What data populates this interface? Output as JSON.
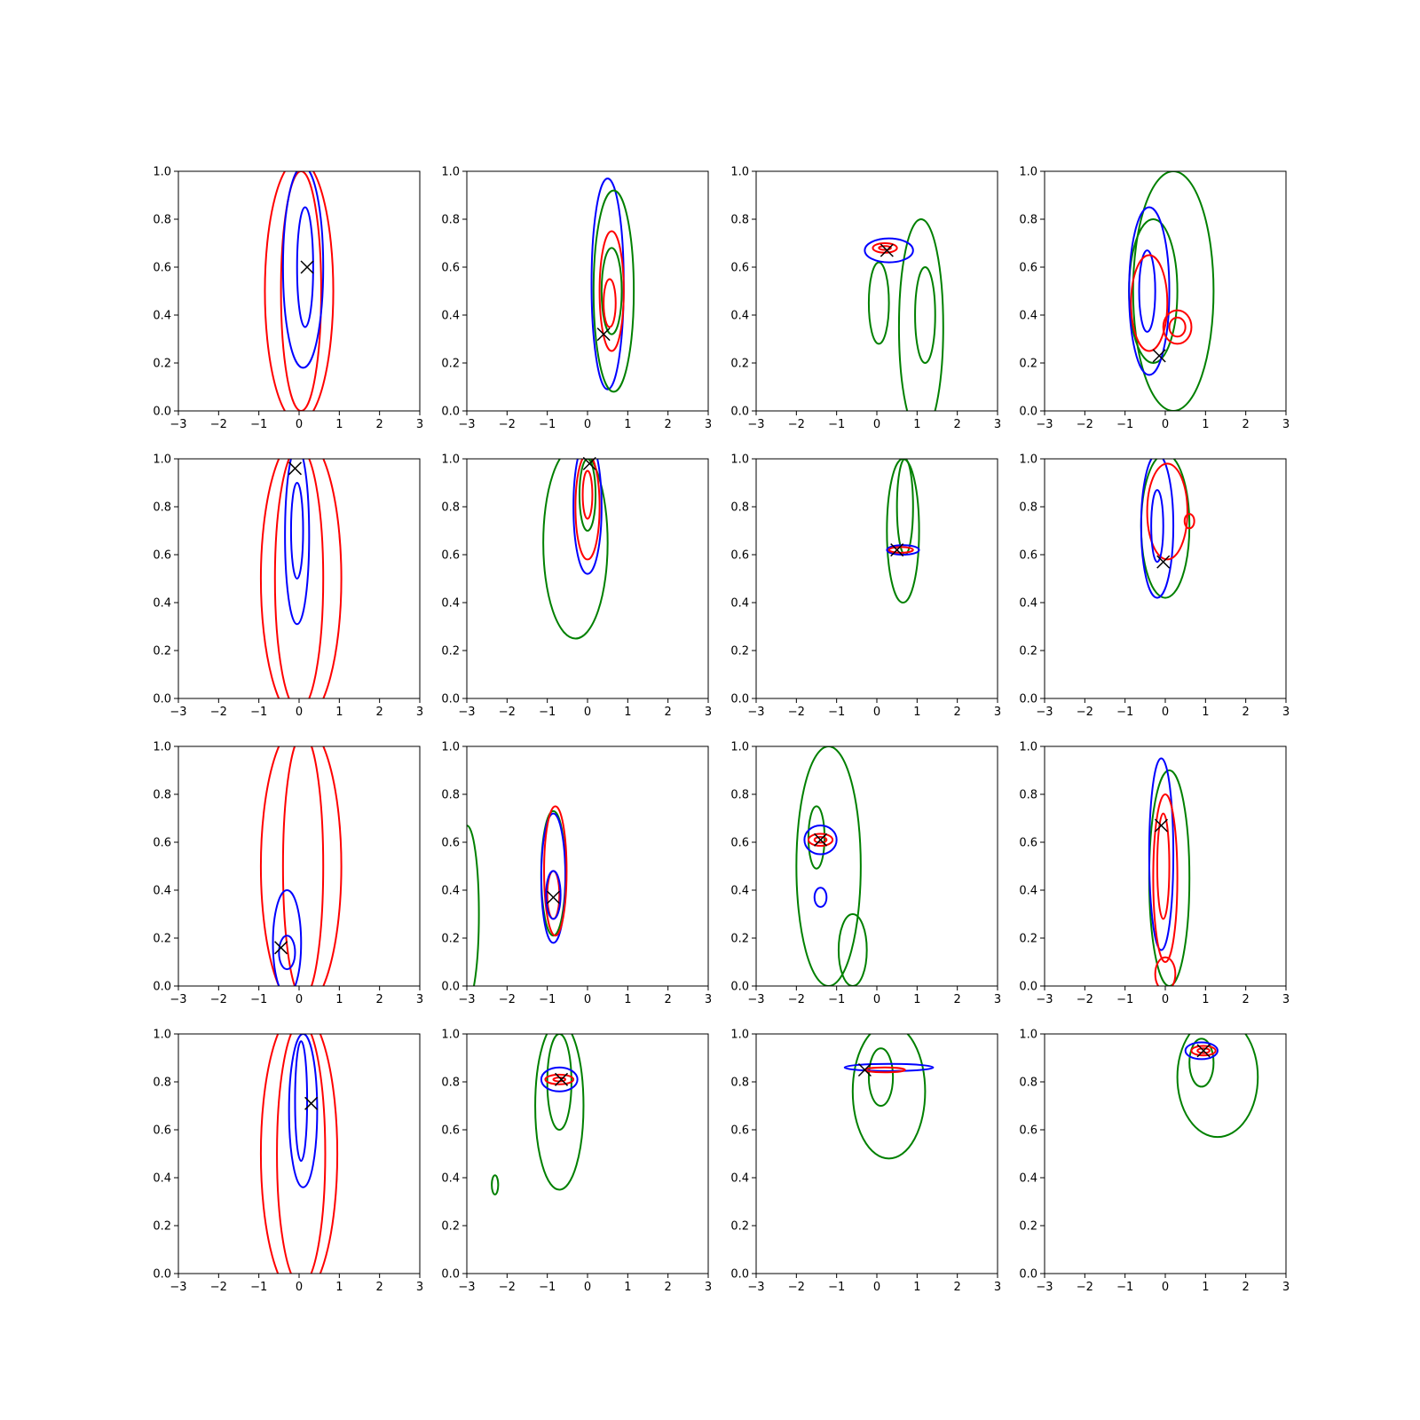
{
  "figure": {
    "grid_rows": 4,
    "grid_cols": 4,
    "x_ticks": [
      "−3",
      "−2",
      "−1",
      "0",
      "1",
      "2",
      "3"
    ],
    "y_ticks": [
      "0.0",
      "0.2",
      "0.4",
      "0.6",
      "0.8",
      "1.0"
    ]
  },
  "colors": {
    "background": "#ffffff",
    "blue": "#0000ff",
    "red": "#ff0000",
    "green": "#008000",
    "marker": "#000000"
  },
  "chart_data": [
    {
      "type": "contour",
      "panel": "r1c1",
      "xlim": [
        -3,
        3
      ],
      "ylim": [
        0,
        1
      ],
      "marker": [
        0.2,
        0.6
      ],
      "contours": [
        {
          "series": "red",
          "level": "outer",
          "cx": 0.0,
          "cy": 0.5,
          "rx": 0.85,
          "ry": 0.55
        },
        {
          "series": "red",
          "level": "inner",
          "cx": 0.05,
          "cy": 0.5,
          "rx": 0.5,
          "ry": 0.5
        },
        {
          "series": "blue",
          "level": "outer",
          "cx": 0.1,
          "cy": 0.6,
          "rx": 0.5,
          "ry": 0.42
        },
        {
          "series": "blue",
          "level": "inner",
          "cx": 0.15,
          "cy": 0.6,
          "rx": 0.2,
          "ry": 0.25
        }
      ]
    },
    {
      "type": "contour",
      "panel": "r1c2",
      "xlim": [
        -3,
        3
      ],
      "ylim": [
        0,
        1
      ],
      "marker": [
        0.4,
        0.32
      ],
      "contours": [
        {
          "series": "blue",
          "level": "outer",
          "cx": 0.5,
          "cy": 0.53,
          "rx": 0.4,
          "ry": 0.44
        },
        {
          "series": "green",
          "level": "outer",
          "cx": 0.65,
          "cy": 0.5,
          "rx": 0.5,
          "ry": 0.42
        },
        {
          "series": "red",
          "level": "outer",
          "cx": 0.6,
          "cy": 0.5,
          "rx": 0.3,
          "ry": 0.25
        },
        {
          "series": "green",
          "level": "inner",
          "cx": 0.6,
          "cy": 0.5,
          "rx": 0.25,
          "ry": 0.18
        },
        {
          "series": "red",
          "level": "inner",
          "cx": 0.55,
          "cy": 0.45,
          "rx": 0.15,
          "ry": 0.1
        }
      ]
    },
    {
      "type": "contour",
      "panel": "r1c3",
      "xlim": [
        -3,
        3
      ],
      "ylim": [
        0,
        1
      ],
      "marker": [
        0.25,
        0.67
      ],
      "contours": [
        {
          "series": "green",
          "level": "outer",
          "cx": 1.1,
          "cy": 0.35,
          "rx": 0.55,
          "ry": 0.45
        },
        {
          "series": "green",
          "level": "inner",
          "cx": 1.2,
          "cy": 0.4,
          "rx": 0.25,
          "ry": 0.2
        },
        {
          "series": "green",
          "level": "outer",
          "cx": 0.05,
          "cy": 0.45,
          "rx": 0.25,
          "ry": 0.17
        },
        {
          "series": "blue",
          "level": "outer",
          "cx": 0.3,
          "cy": 0.67,
          "rx": 0.6,
          "ry": 0.05
        },
        {
          "series": "red",
          "level": "outer",
          "cx": 0.2,
          "cy": 0.68,
          "rx": 0.3,
          "ry": 0.02
        },
        {
          "series": "red",
          "level": "inner",
          "cx": 0.2,
          "cy": 0.68,
          "rx": 0.15,
          "ry": 0.008
        }
      ]
    },
    {
      "type": "contour",
      "panel": "r1c4",
      "xlim": [
        -3,
        3
      ],
      "ylim": [
        0,
        1
      ],
      "marker": [
        -0.15,
        0.23
      ],
      "contours": [
        {
          "series": "green",
          "level": "outer",
          "cx": 0.2,
          "cy": 0.5,
          "rx": 1.0,
          "ry": 0.5
        },
        {
          "series": "green",
          "level": "inner",
          "cx": -0.3,
          "cy": 0.5,
          "rx": 0.6,
          "ry": 0.3
        },
        {
          "series": "blue",
          "level": "outer",
          "cx": -0.4,
          "cy": 0.5,
          "rx": 0.5,
          "ry": 0.35
        },
        {
          "series": "blue",
          "level": "inner",
          "cx": -0.45,
          "cy": 0.5,
          "rx": 0.2,
          "ry": 0.17
        },
        {
          "series": "red",
          "level": "outer",
          "cx": -0.4,
          "cy": 0.45,
          "rx": 0.45,
          "ry": 0.2
        },
        {
          "series": "red",
          "level": "inner",
          "cx": 0.3,
          "cy": 0.35,
          "rx": 0.35,
          "ry": 0.07
        },
        {
          "series": "red",
          "level": "inner",
          "cx": 0.3,
          "cy": 0.35,
          "rx": 0.2,
          "ry": 0.04
        }
      ]
    },
    {
      "type": "contour",
      "panel": "r2c1",
      "xlim": [
        -3,
        3
      ],
      "ylim": [
        0,
        1
      ],
      "marker": [
        -0.1,
        0.96
      ],
      "contours": [
        {
          "series": "red",
          "level": "outer",
          "cx": 0.05,
          "cy": 0.5,
          "rx": 1.0,
          "ry": 0.6
        },
        {
          "series": "red",
          "level": "inner",
          "cx": 0.0,
          "cy": 0.5,
          "rx": 0.6,
          "ry": 0.55
        },
        {
          "series": "blue",
          "level": "outer",
          "cx": -0.05,
          "cy": 0.68,
          "rx": 0.3,
          "ry": 0.37
        },
        {
          "series": "blue",
          "level": "inner",
          "cx": -0.05,
          "cy": 0.7,
          "rx": 0.15,
          "ry": 0.2
        }
      ]
    },
    {
      "type": "contour",
      "panel": "r2c2",
      "xlim": [
        -3,
        3
      ],
      "ylim": [
        0,
        1
      ],
      "marker": [
        0.05,
        0.98
      ],
      "contours": [
        {
          "series": "green",
          "level": "outer",
          "cx": -0.3,
          "cy": 0.65,
          "rx": 0.8,
          "ry": 0.4
        },
        {
          "series": "blue",
          "level": "outer",
          "cx": 0.0,
          "cy": 0.8,
          "rx": 0.35,
          "ry": 0.28
        },
        {
          "series": "red",
          "level": "outer",
          "cx": 0.0,
          "cy": 0.8,
          "rx": 0.3,
          "ry": 0.22
        },
        {
          "series": "green",
          "level": "inner",
          "cx": 0.0,
          "cy": 0.85,
          "rx": 0.2,
          "ry": 0.15
        },
        {
          "series": "red",
          "level": "inner",
          "cx": 0.0,
          "cy": 0.85,
          "rx": 0.12,
          "ry": 0.1
        }
      ]
    },
    {
      "type": "contour",
      "panel": "r2c3",
      "xlim": [
        -3,
        3
      ],
      "ylim": [
        0,
        1
      ],
      "marker": [
        0.5,
        0.62
      ],
      "contours": [
        {
          "series": "green",
          "level": "outer",
          "cx": 0.65,
          "cy": 0.7,
          "rx": 0.4,
          "ry": 0.3
        },
        {
          "series": "green",
          "level": "inner",
          "cx": 0.7,
          "cy": 0.8,
          "rx": 0.2,
          "ry": 0.2
        },
        {
          "series": "blue",
          "level": "outer",
          "cx": 0.65,
          "cy": 0.62,
          "rx": 0.4,
          "ry": 0.02
        },
        {
          "series": "red",
          "level": "outer",
          "cx": 0.6,
          "cy": 0.62,
          "rx": 0.3,
          "ry": 0.012
        }
      ]
    },
    {
      "type": "contour",
      "panel": "r2c4",
      "xlim": [
        -3,
        3
      ],
      "ylim": [
        0,
        1
      ],
      "marker": [
        -0.05,
        0.57
      ],
      "contours": [
        {
          "series": "green",
          "level": "outer",
          "cx": 0.0,
          "cy": 0.72,
          "rx": 0.6,
          "ry": 0.3
        },
        {
          "series": "blue",
          "level": "outer",
          "cx": -0.2,
          "cy": 0.72,
          "rx": 0.4,
          "ry": 0.3
        },
        {
          "series": "red",
          "level": "outer",
          "cx": 0.05,
          "cy": 0.78,
          "rx": 0.5,
          "ry": 0.2
        },
        {
          "series": "red",
          "level": "inner",
          "cx": 0.6,
          "cy": 0.74,
          "rx": 0.12,
          "ry": 0.03
        },
        {
          "series": "blue",
          "level": "inner",
          "cx": -0.2,
          "cy": 0.72,
          "rx": 0.15,
          "ry": 0.15
        }
      ]
    },
    {
      "type": "contour",
      "panel": "r3c1",
      "xlim": [
        -3,
        3
      ],
      "ylim": [
        0,
        1
      ],
      "marker": [
        -0.45,
        0.16
      ],
      "contours": [
        {
          "series": "red",
          "level": "outer",
          "cx": 0.05,
          "cy": 0.5,
          "rx": 1.0,
          "ry": 0.6
        },
        {
          "series": "red",
          "level": "inner",
          "cx": 0.1,
          "cy": 0.5,
          "rx": 0.5,
          "ry": 0.55
        },
        {
          "series": "blue",
          "level": "outer",
          "cx": -0.3,
          "cy": 0.18,
          "rx": 0.35,
          "ry": 0.22
        },
        {
          "series": "blue",
          "level": "inner",
          "cx": -0.3,
          "cy": 0.14,
          "rx": 0.2,
          "ry": 0.07
        }
      ]
    },
    {
      "type": "contour",
      "panel": "r3c2",
      "xlim": [
        -3,
        3
      ],
      "ylim": [
        0,
        1
      ],
      "marker": [
        -0.85,
        0.37
      ],
      "contours": [
        {
          "series": "green",
          "level": "outer",
          "cx": -3.0,
          "cy": 0.3,
          "rx": 0.3,
          "ry": 0.37
        },
        {
          "series": "green",
          "level": "outer",
          "cx": -0.85,
          "cy": 0.47,
          "rx": 0.3,
          "ry": 0.26
        },
        {
          "series": "blue",
          "level": "outer",
          "cx": -0.85,
          "cy": 0.45,
          "rx": 0.3,
          "ry": 0.27
        },
        {
          "series": "red",
          "level": "outer",
          "cx": -0.8,
          "cy": 0.48,
          "rx": 0.28,
          "ry": 0.27
        },
        {
          "series": "red",
          "level": "inner",
          "cx": -0.85,
          "cy": 0.38,
          "rx": 0.15,
          "ry": 0.1
        },
        {
          "series": "blue",
          "level": "inner",
          "cx": -0.85,
          "cy": 0.38,
          "rx": 0.18,
          "ry": 0.1
        }
      ]
    },
    {
      "type": "contour",
      "panel": "r3c3",
      "xlim": [
        -3,
        3
      ],
      "ylim": [
        0,
        1
      ],
      "marker": [
        -1.4,
        0.61
      ],
      "contours": [
        {
          "series": "green",
          "level": "outer",
          "cx": -1.2,
          "cy": 0.5,
          "rx": 0.8,
          "ry": 0.5
        },
        {
          "series": "green",
          "level": "inner",
          "cx": -1.5,
          "cy": 0.62,
          "rx": 0.2,
          "ry": 0.13
        },
        {
          "series": "green",
          "level": "inner",
          "cx": -0.6,
          "cy": 0.15,
          "rx": 0.35,
          "ry": 0.15
        },
        {
          "series": "blue",
          "level": "outer",
          "cx": -1.4,
          "cy": 0.61,
          "rx": 0.4,
          "ry": 0.06
        },
        {
          "series": "red",
          "level": "outer",
          "cx": -1.4,
          "cy": 0.61,
          "rx": 0.3,
          "ry": 0.025
        },
        {
          "series": "red",
          "level": "inner",
          "cx": -1.4,
          "cy": 0.61,
          "rx": 0.15,
          "ry": 0.012
        },
        {
          "series": "blue",
          "level": "inner",
          "cx": -1.4,
          "cy": 0.37,
          "rx": 0.15,
          "ry": 0.04
        }
      ]
    },
    {
      "type": "contour",
      "panel": "r3c4",
      "xlim": [
        -3,
        3
      ],
      "ylim": [
        0,
        1
      ],
      "marker": [
        -0.1,
        0.67
      ],
      "contours": [
        {
          "series": "green",
          "level": "outer",
          "cx": 0.1,
          "cy": 0.45,
          "rx": 0.5,
          "ry": 0.45
        },
        {
          "series": "blue",
          "level": "outer",
          "cx": -0.1,
          "cy": 0.55,
          "rx": 0.3,
          "ry": 0.4
        },
        {
          "series": "red",
          "level": "outer",
          "cx": 0.0,
          "cy": 0.45,
          "rx": 0.3,
          "ry": 0.35
        },
        {
          "series": "red",
          "level": "inner",
          "cx": -0.05,
          "cy": 0.5,
          "rx": 0.15,
          "ry": 0.22
        },
        {
          "series": "red",
          "level": "inner",
          "cx": 0.0,
          "cy": 0.05,
          "rx": 0.25,
          "ry": 0.07
        }
      ]
    },
    {
      "type": "contour",
      "panel": "r4c1",
      "xlim": [
        -3,
        3
      ],
      "ylim": [
        0,
        1
      ],
      "marker": [
        0.3,
        0.71
      ],
      "contours": [
        {
          "series": "red",
          "level": "outer",
          "cx": 0.0,
          "cy": 0.5,
          "rx": 0.95,
          "ry": 0.6
        },
        {
          "series": "red",
          "level": "inner",
          "cx": 0.05,
          "cy": 0.5,
          "rx": 0.6,
          "ry": 0.55
        },
        {
          "series": "blue",
          "level": "outer",
          "cx": 0.1,
          "cy": 0.68,
          "rx": 0.35,
          "ry": 0.32
        },
        {
          "series": "blue",
          "level": "inner",
          "cx": 0.05,
          "cy": 0.72,
          "rx": 0.15,
          "ry": 0.25
        }
      ]
    },
    {
      "type": "contour",
      "panel": "r4c2",
      "xlim": [
        -3,
        3
      ],
      "ylim": [
        0,
        1
      ],
      "marker": [
        -0.65,
        0.81
      ],
      "contours": [
        {
          "series": "green",
          "level": "outer",
          "cx": -0.7,
          "cy": 0.7,
          "rx": 0.6,
          "ry": 0.35
        },
        {
          "series": "green",
          "level": "inner",
          "cx": -0.7,
          "cy": 0.8,
          "rx": 0.3,
          "ry": 0.2
        },
        {
          "series": "green",
          "level": "outer",
          "cx": -2.3,
          "cy": 0.37,
          "rx": 0.08,
          "ry": 0.04
        },
        {
          "series": "blue",
          "level": "outer",
          "cx": -0.7,
          "cy": 0.81,
          "rx": 0.45,
          "ry": 0.05
        },
        {
          "series": "red",
          "level": "outer",
          "cx": -0.7,
          "cy": 0.81,
          "rx": 0.35,
          "ry": 0.02
        },
        {
          "series": "red",
          "level": "inner",
          "cx": -0.7,
          "cy": 0.81,
          "rx": 0.15,
          "ry": 0.008
        }
      ]
    },
    {
      "type": "contour",
      "panel": "r4c3",
      "xlim": [
        -3,
        3
      ],
      "ylim": [
        0,
        1
      ],
      "marker": [
        -0.3,
        0.85
      ],
      "contours": [
        {
          "series": "green",
          "level": "outer",
          "cx": 0.3,
          "cy": 0.76,
          "rx": 0.9,
          "ry": 0.28
        },
        {
          "series": "green",
          "level": "inner",
          "cx": 0.1,
          "cy": 0.82,
          "rx": 0.3,
          "ry": 0.12
        },
        {
          "series": "blue",
          "level": "outer",
          "cx": 0.3,
          "cy": 0.86,
          "rx": 1.1,
          "ry": 0.015
        },
        {
          "series": "red",
          "level": "outer",
          "cx": 0.2,
          "cy": 0.85,
          "rx": 0.5,
          "ry": 0.01
        }
      ]
    },
    {
      "type": "contour",
      "panel": "r4c4",
      "xlim": [
        -3,
        3
      ],
      "ylim": [
        0,
        1
      ],
      "marker": [
        0.95,
        0.93
      ],
      "contours": [
        {
          "series": "green",
          "level": "outer",
          "cx": 1.3,
          "cy": 0.82,
          "rx": 1.0,
          "ry": 0.25
        },
        {
          "series": "green",
          "level": "inner",
          "cx": 0.9,
          "cy": 0.88,
          "rx": 0.3,
          "ry": 0.1
        },
        {
          "series": "blue",
          "level": "outer",
          "cx": 0.9,
          "cy": 0.93,
          "rx": 0.4,
          "ry": 0.035
        },
        {
          "series": "red",
          "level": "outer",
          "cx": 0.95,
          "cy": 0.93,
          "rx": 0.3,
          "ry": 0.02
        },
        {
          "series": "red",
          "level": "inner",
          "cx": 0.95,
          "cy": 0.93,
          "rx": 0.15,
          "ry": 0.01
        }
      ]
    }
  ]
}
